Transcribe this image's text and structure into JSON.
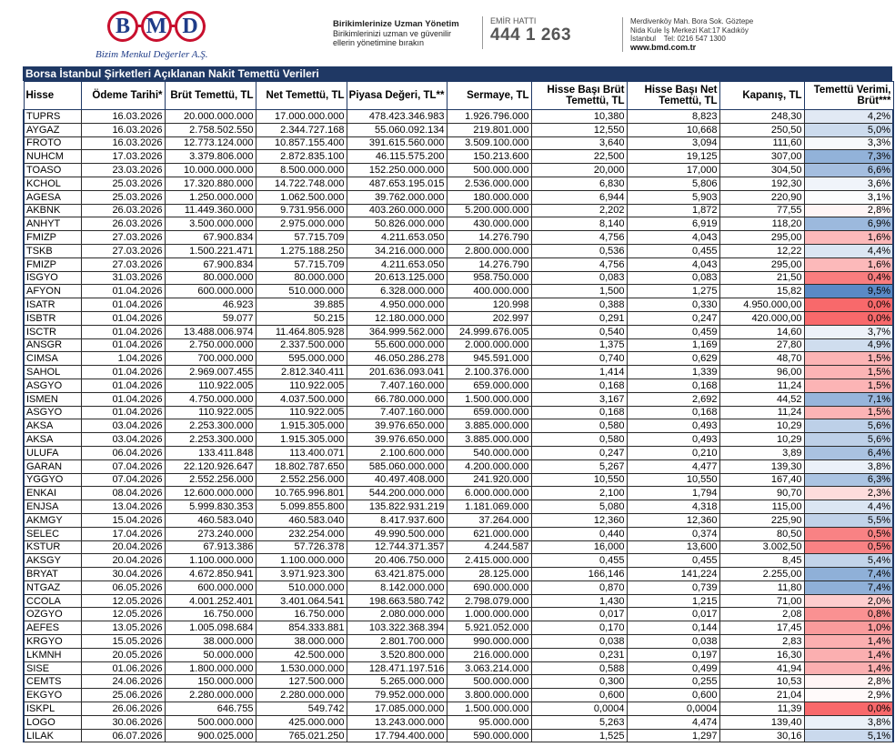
{
  "header": {
    "logo": "BMD",
    "company": "Bizim Menkul Değerler A.Ş.",
    "slogan_title": "Birikimlerinize Uzman Yönetim",
    "slogan_lines": [
      "Birikimlerinizi uzman ve güvenilir",
      "ellerin yönetimine bırakın"
    ],
    "order_line_label": "EMİR HATTI",
    "order_line": "444 1 263",
    "address": [
      "Merdivenköy Mah. Bora Sok. Göztepe",
      "Nida Kule İş Merkezi Kat:17 Kadıköy",
      "İstanbul    Tel: 0216 547 1300"
    ],
    "website": "www.bmd.com.tr"
  },
  "table": {
    "title": "Borsa İstanbul Şirketleri Açıklanan Nakit Temettü Verileri",
    "columns": [
      "Hisse",
      "Ödeme Tarihi*",
      "Brüt Temettü, TL",
      "Net Temettü, TL",
      "Piyasa Değeri, TL**",
      "Sermaye, TL",
      "Hisse Başı Brüt Temettü, TL",
      "Hisse Başı Net Temettü, TL",
      "Kapanış, TL",
      "Temettü Verimi, Brüt***"
    ],
    "rows": [
      [
        "TUPRS",
        "16.03.2026",
        "20.000.000.000",
        "17.000.000.000",
        "478.423.346.983",
        "1.926.796.000",
        "10,380",
        "8,823",
        "248,30",
        "4,2%"
      ],
      [
        "AYGAZ",
        "16.03.2026",
        "2.758.502.550",
        "2.344.727.168",
        "55.060.092.134",
        "219.801.000",
        "12,550",
        "10,668",
        "250,50",
        "5,0%"
      ],
      [
        "FROTO",
        "16.03.2026",
        "12.773.124.000",
        "10.857.155.400",
        "391.615.560.000",
        "3.509.100.000",
        "3,640",
        "3,094",
        "111,60",
        "3,3%"
      ],
      [
        "NUHCM",
        "17.03.2026",
        "3.379.806.000",
        "2.872.835.100",
        "46.115.575.200",
        "150.213.600",
        "22,500",
        "19,125",
        "307,00",
        "7,3%"
      ],
      [
        "TOASO",
        "23.03.2026",
        "10.000.000.000",
        "8.500.000.000",
        "152.250.000.000",
        "500.000.000",
        "20,000",
        "17,000",
        "304,50",
        "6,6%"
      ],
      [
        "KCHOL",
        "25.03.2026",
        "17.320.880.000",
        "14.722.748.000",
        "487.653.195.015",
        "2.536.000.000",
        "6,830",
        "5,806",
        "192,30",
        "3,6%"
      ],
      [
        "AGESA",
        "25.03.2026",
        "1.250.000.000",
        "1.062.500.000",
        "39.762.000.000",
        "180.000.000",
        "6,944",
        "5,903",
        "220,90",
        "3,1%"
      ],
      [
        "AKBNK",
        "26.03.2026",
        "11.449.360.000",
        "9.731.956.000",
        "403.260.000.000",
        "5.200.000.000",
        "2,202",
        "1,872",
        "77,55",
        "2,8%"
      ],
      [
        "ANHYT",
        "26.03.2026",
        "3.500.000.000",
        "2.975.000.000",
        "50.826.000.000",
        "430.000.000",
        "8,140",
        "6,919",
        "118,20",
        "6,9%"
      ],
      [
        "FMIZP",
        "27.03.2026",
        "67.900.834",
        "57.715.709",
        "4.211.653.050",
        "14.276.790",
        "4,756",
        "4,043",
        "295,00",
        "1,6%"
      ],
      [
        "TSKB",
        "27.03.2026",
        "1.500.221.471",
        "1.275.188.250",
        "34.216.000.000",
        "2.800.000.000",
        "0,536",
        "0,455",
        "12,22",
        "4,4%"
      ],
      [
        "FMIZP",
        "27.03.2026",
        "67.900.834",
        "57.715.709",
        "4.211.653.050",
        "14.276.790",
        "4,756",
        "4,043",
        "295,00",
        "1,6%"
      ],
      [
        "ISGYO",
        "31.03.2026",
        "80.000.000",
        "80.000.000",
        "20.613.125.000",
        "958.750.000",
        "0,083",
        "0,083",
        "21,50",
        "0,4%"
      ],
      [
        "AFYON",
        "01.04.2026",
        "600.000.000",
        "510.000.000",
        "6.328.000.000",
        "400.000.000",
        "1,500",
        "1,275",
        "15,82",
        "9,5%"
      ],
      [
        "ISATR",
        "01.04.2026",
        "46.923",
        "39.885",
        "4.950.000.000",
        "120.998",
        "0,388",
        "0,330",
        "4.950.000,00",
        "0,0%"
      ],
      [
        "ISBTR",
        "01.04.2026",
        "59.077",
        "50.215",
        "12.180.000.000",
        "202.997",
        "0,291",
        "0,247",
        "420.000,00",
        "0,0%"
      ],
      [
        "ISCTR",
        "01.04.2026",
        "13.488.006.974",
        "11.464.805.928",
        "364.999.562.000",
        "24.999.676.005",
        "0,540",
        "0,459",
        "14,60",
        "3,7%"
      ],
      [
        "ANSGR",
        "01.04.2026",
        "2.750.000.000",
        "2.337.500.000",
        "55.600.000.000",
        "2.000.000.000",
        "1,375",
        "1,169",
        "27,80",
        "4,9%"
      ],
      [
        "CIMSA",
        "1.04.2026",
        "700.000.000",
        "595.000.000",
        "46.050.286.278",
        "945.591.000",
        "0,740",
        "0,629",
        "48,70",
        "1,5%"
      ],
      [
        "SAHOL",
        "01.04.2026",
        "2.969.007.455",
        "2.812.340.411",
        "201.636.093.041",
        "2.100.376.000",
        "1,414",
        "1,339",
        "96,00",
        "1,5%"
      ],
      [
        "ASGYO",
        "01.04.2026",
        "110.922.005",
        "110.922.005",
        "7.407.160.000",
        "659.000.000",
        "0,168",
        "0,168",
        "11,24",
        "1,5%"
      ],
      [
        "ISMEN",
        "01.04.2026",
        "4.750.000.000",
        "4.037.500.000",
        "66.780.000.000",
        "1.500.000.000",
        "3,167",
        "2,692",
        "44,52",
        "7,1%"
      ],
      [
        "ASGYO",
        "01.04.2026",
        "110.922.005",
        "110.922.005",
        "7.407.160.000",
        "659.000.000",
        "0,168",
        "0,168",
        "11,24",
        "1,5%"
      ],
      [
        "AKSA",
        "03.04.2026",
        "2.253.300.000",
        "1.915.305.000",
        "39.976.650.000",
        "3.885.000.000",
        "0,580",
        "0,493",
        "10,29",
        "5,6%"
      ],
      [
        "AKSA",
        "03.04.2026",
        "2.253.300.000",
        "1.915.305.000",
        "39.976.650.000",
        "3.885.000.000",
        "0,580",
        "0,493",
        "10,29",
        "5,6%"
      ],
      [
        "ULUFA",
        "06.04.2026",
        "133.411.848",
        "113.400.071",
        "2.100.600.000",
        "540.000.000",
        "0,247",
        "0,210",
        "3,89",
        "6,4%"
      ],
      [
        "GARAN",
        "07.04.2026",
        "22.120.926.647",
        "18.802.787.650",
        "585.060.000.000",
        "4.200.000.000",
        "5,267",
        "4,477",
        "139,30",
        "3,8%"
      ],
      [
        "YGGYO",
        "07.04.2026",
        "2.552.256.000",
        "2.552.256.000",
        "40.497.408.000",
        "241.920.000",
        "10,550",
        "10,550",
        "167,40",
        "6,3%"
      ],
      [
        "ENKAI",
        "08.04.2026",
        "12.600.000.000",
        "10.765.996.801",
        "544.200.000.000",
        "6.000.000.000",
        "2,100",
        "1,794",
        "90,70",
        "2,3%"
      ],
      [
        "ENJSA",
        "13.04.2026",
        "5.999.830.353",
        "5.099.855.800",
        "135.822.931.219",
        "1.181.069.000",
        "5,080",
        "4,318",
        "115,00",
        "4,4%"
      ],
      [
        "AKMGY",
        "15.04.2026",
        "460.583.040",
        "460.583.040",
        "8.417.937.600",
        "37.264.000",
        "12,360",
        "12,360",
        "225,90",
        "5,5%"
      ],
      [
        "SELEC",
        "17.04.2026",
        "273.240.000",
        "232.254.000",
        "49.990.500.000",
        "621.000.000",
        "0,440",
        "0,374",
        "80,50",
        "0,5%"
      ],
      [
        "KSTUR",
        "20.04.2026",
        "67.913.386",
        "57.726.378",
        "12.744.371.357",
        "4.244.587",
        "16,000",
        "13,600",
        "3.002,50",
        "0,5%"
      ],
      [
        "AKSGY",
        "20.04.2026",
        "1.100.000.000",
        "1.100.000.000",
        "20.406.750.000",
        "2.415.000.000",
        "0,455",
        "0,455",
        "8,45",
        "5,4%"
      ],
      [
        "BRYAT",
        "30.04.2026",
        "4.672.850.941",
        "3.971.923.300",
        "63.421.875.000",
        "28.125.000",
        "166,146",
        "141,224",
        "2.255,00",
        "7,4%"
      ],
      [
        "NTGAZ",
        "06.05.2026",
        "600.000.000",
        "510.000.000",
        "8.142.000.000",
        "690.000.000",
        "0,870",
        "0,739",
        "11,80",
        "7,4%"
      ],
      [
        "CCOLA",
        "12.05.2026",
        "4.001.252.401",
        "3.401.064.541",
        "198.663.580.742",
        "2.798.079.000",
        "1,430",
        "1,215",
        "71,00",
        "2,0%"
      ],
      [
        "OZGYO",
        "12.05.2026",
        "16.750.000",
        "16.750.000",
        "2.080.000.000",
        "1.000.000.000",
        "0,017",
        "0,017",
        "2,08",
        "0,8%"
      ],
      [
        "AEFES",
        "13.05.2026",
        "1.005.098.684",
        "854.333.881",
        "103.322.368.394",
        "5.921.052.000",
        "0,170",
        "0,144",
        "17,45",
        "1,0%"
      ],
      [
        "KRGYO",
        "15.05.2026",
        "38.000.000",
        "38.000.000",
        "2.801.700.000",
        "990.000.000",
        "0,038",
        "0,038",
        "2,83",
        "1,4%"
      ],
      [
        "LKMNH",
        "20.05.2026",
        "50.000.000",
        "42.500.000",
        "3.520.800.000",
        "216.000.000",
        "0,231",
        "0,197",
        "16,30",
        "1,4%"
      ],
      [
        "SISE",
        "01.06.2026",
        "1.800.000.000",
        "1.530.000.000",
        "128.471.197.516",
        "3.063.214.000",
        "0,588",
        "0,499",
        "41,94",
        "1,4%"
      ],
      [
        "CEMTS",
        "24.06.2026",
        "150.000.000",
        "127.500.000",
        "5.265.000.000",
        "500.000.000",
        "0,300",
        "0,255",
        "10,53",
        "2,8%"
      ],
      [
        "EKGYO",
        "25.06.2026",
        "2.280.000.000",
        "2.280.000.000",
        "79.952.000.000",
        "3.800.000.000",
        "0,600",
        "0,600",
        "21,04",
        "2,9%"
      ],
      [
        "ISKPL",
        "26.06.2026",
        "646.755",
        "549.742",
        "17.085.000.000",
        "1.500.000.000",
        "0,0004",
        "0,0004",
        "11,39",
        "0,0%"
      ],
      [
        "LOGO",
        "30.06.2026",
        "500.000.000",
        "425.000.000",
        "13.243.000.000",
        "95.000.000",
        "5,263",
        "4,474",
        "139,40",
        "3,8%"
      ],
      [
        "LILAK",
        "06.07.2026",
        "900.025.000",
        "765.021.250",
        "17.794.400.000",
        "590.000.000",
        "1,525",
        "1,297",
        "30,16",
        "5,1%"
      ]
    ]
  }
}
